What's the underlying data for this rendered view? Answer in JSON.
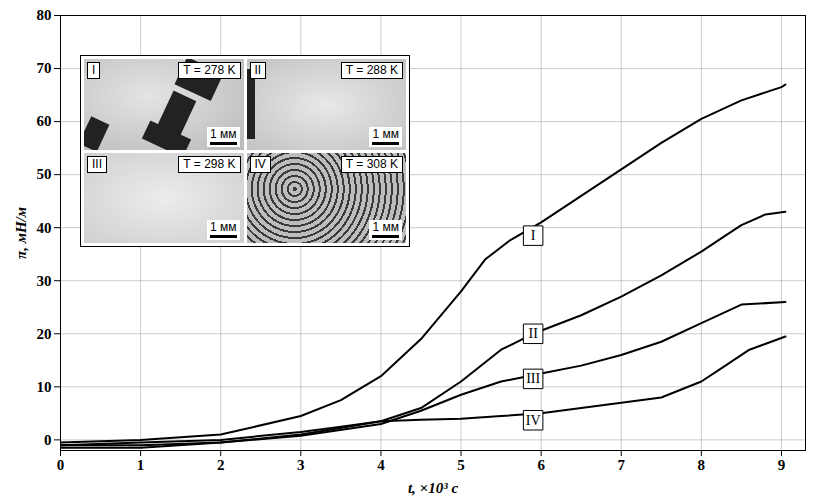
{
  "chart_data": {
    "type": "line",
    "x_label": "t, ×10³ с",
    "y_label": "π, мН/м",
    "xlim": [
      0,
      9.3
    ],
    "xticks": [
      0,
      1,
      2,
      3,
      4,
      5,
      6,
      7,
      8,
      9
    ],
    "ylim": [
      -2,
      80
    ],
    "yticks": [
      0,
      10,
      20,
      30,
      40,
      50,
      60,
      70,
      80
    ],
    "grid": true,
    "color": "#000000",
    "series": [
      {
        "name": "I",
        "label_x": 5.9,
        "label_y": 38.5,
        "x": [
          0,
          1,
          2,
          3,
          3.5,
          4,
          4.5,
          5,
          5.3,
          5.6,
          6,
          6.5,
          7,
          7.5,
          8,
          8.5,
          9,
          9.05
        ],
        "values": [
          -0.5,
          0,
          1,
          4.5,
          7.5,
          12,
          19,
          28,
          34,
          37.5,
          41,
          46,
          51,
          56,
          60.5,
          64,
          66.5,
          67
        ]
      },
      {
        "name": "II",
        "label_x": 5.9,
        "label_y": 20,
        "x": [
          0,
          1,
          2,
          3,
          4,
          4.5,
          5,
          5.5,
          5.9,
          6.5,
          7,
          7.5,
          8,
          8.3,
          8.5,
          8.8,
          9.05
        ],
        "values": [
          -1,
          -1,
          -0.5,
          1,
          3.5,
          6,
          11,
          17,
          20,
          23.5,
          27,
          31,
          35.5,
          38.5,
          40.5,
          42.5,
          43
        ]
      },
      {
        "name": "III",
        "label_x": 5.9,
        "label_y": 11.5,
        "x": [
          0,
          1,
          2,
          3,
          4,
          4.5,
          5,
          5.5,
          6,
          6.5,
          7,
          7.5,
          8,
          8.5,
          9.05
        ],
        "values": [
          -1.5,
          -1.5,
          -0.5,
          0.8,
          3,
          5.5,
          8.5,
          11,
          12.5,
          14,
          16,
          18.5,
          22,
          25.5,
          26
        ]
      },
      {
        "name": "IV",
        "label_x": 5.9,
        "label_y": 3.7,
        "x": [
          0,
          1,
          2,
          3,
          3.5,
          4,
          4.5,
          5,
          5.5,
          6,
          6.5,
          7,
          7.5,
          8,
          8.3,
          8.6,
          9.05
        ],
        "values": [
          -1,
          -0.5,
          0,
          1.5,
          2.5,
          3.5,
          3.8,
          4,
          4.5,
          5,
          6,
          7,
          8,
          11,
          14,
          17,
          19.5
        ]
      }
    ],
    "insets": [
      {
        "label": "I",
        "temperature": "T = 278 K",
        "scale_bar": "1 мм"
      },
      {
        "label": "II",
        "temperature": "T = 288 K",
        "scale_bar": "1 мм"
      },
      {
        "label": "III",
        "temperature": "T = 298 K",
        "scale_bar": "1 мм"
      },
      {
        "label": "IV",
        "temperature": "T = 308 K",
        "scale_bar": "1 мм"
      }
    ]
  }
}
